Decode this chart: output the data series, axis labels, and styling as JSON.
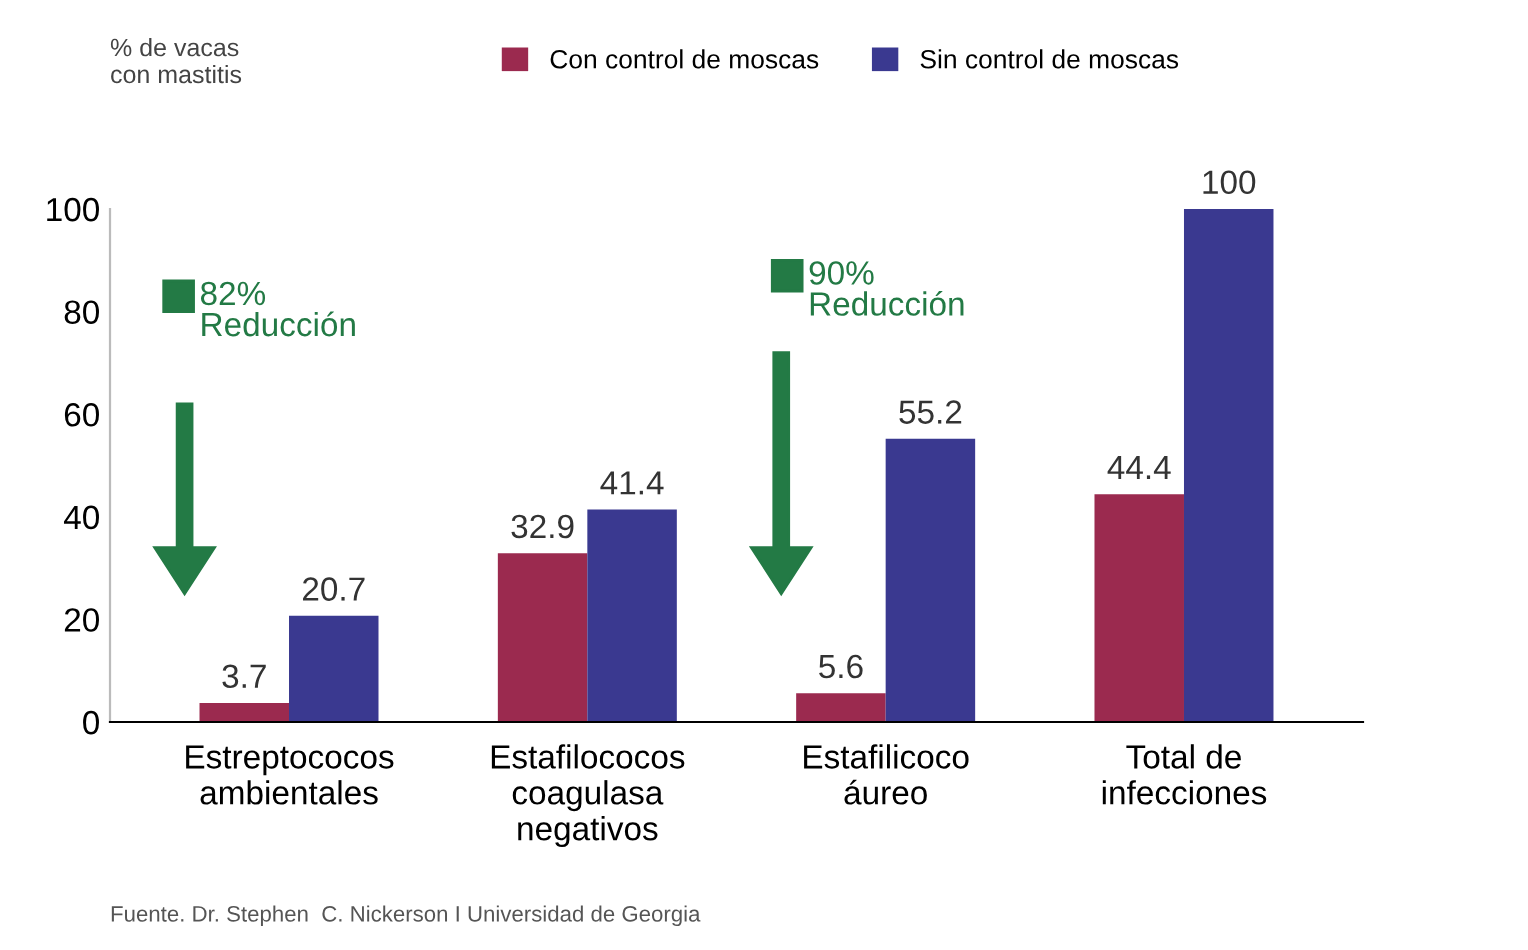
{
  "chart_data": {
    "type": "bar",
    "ylabel": "% de vacas\ncon mastitis",
    "categories": [
      "Estreptococos\nambientales",
      "Estafilococos\ncoagulasa\nnegativos",
      "Estafilicoco\náureo",
      "Total de\ninfecciones"
    ],
    "series": [
      {
        "name": "Con control de moscas",
        "color": "#9b2a4f",
        "values": [
          3.7,
          32.9,
          5.6,
          44.4
        ]
      },
      {
        "name": "Sin control de moscas",
        "color": "#3a3990",
        "values": [
          20.7,
          41.4,
          55.2,
          100
        ]
      }
    ],
    "ylim": [
      0,
      100
    ],
    "yticks": [
      0,
      20,
      40,
      60,
      80,
      100
    ],
    "data_labels": true,
    "grid": false,
    "legend": "top",
    "annotations": [
      "82%\nReducción",
      "90%\nReducción",
      "Fuente. Dr. Stephen  C. Nickerson I Universidad de Georgia"
    ]
  }
}
